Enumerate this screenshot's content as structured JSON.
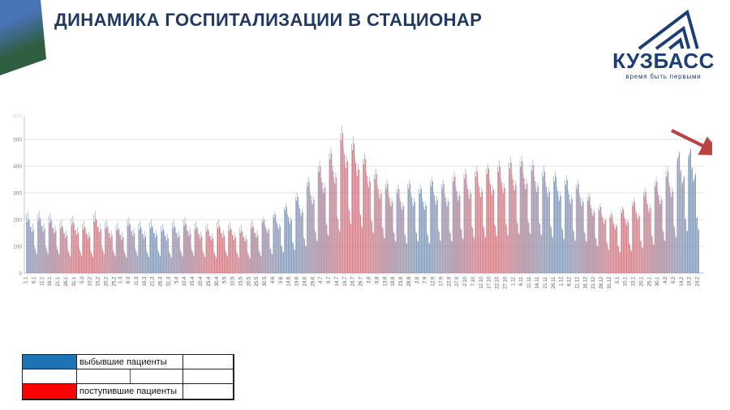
{
  "slide": {
    "title": "ДИНАМИКА ГОСПИТАЛИЗАЦИИ В СТАЦИОНАР"
  },
  "logo": {
    "wordmark": "КУЗБАСС",
    "tagline": "время быть первыми",
    "color": "#1b3e78"
  },
  "legend": {
    "items": [
      {
        "label": "выбывшие пациенты",
        "color": "#1e73b5"
      },
      {
        "label": "поступившие пациенты",
        "color": "#fe0000"
      }
    ]
  },
  "decor": {
    "corner_top_color": "#4a74b8",
    "corner_bottom_color": "#2f5d40"
  },
  "chart_data": {
    "type": "bar",
    "title": "",
    "xlabel": "",
    "ylabel": "",
    "ylim": [
      0,
      600
    ],
    "grid": true,
    "legend_position": "bottom-left-table",
    "y_ticks": [
      0,
      100,
      200,
      300,
      400,
      500,
      600
    ],
    "n_days": 420,
    "x_tick_days": [
      0,
      5,
      10,
      15,
      20,
      25,
      30,
      35,
      40,
      45,
      50,
      55,
      59,
      64,
      69,
      74,
      79,
      84,
      89,
      94,
      99,
      104,
      109,
      114,
      119,
      124,
      129,
      134,
      139,
      144,
      149,
      154,
      159,
      164,
      169,
      174,
      179,
      184,
      189,
      194,
      199,
      204,
      209,
      214,
      219,
      224,
      229,
      234,
      239,
      244,
      249,
      254,
      259,
      264,
      269,
      274,
      279,
      284,
      289,
      294,
      299,
      304,
      309,
      314,
      319,
      324,
      329,
      334,
      339,
      344,
      349,
      354,
      359,
      364,
      369,
      374,
      379,
      384,
      389,
      394,
      399,
      404,
      409,
      414,
      419
    ],
    "x_tick_labels": [
      "1.1",
      "6.1",
      "11.1",
      "16.1",
      "21.1",
      "26.1",
      "31.1",
      "5.2",
      "10.2",
      "15.2",
      "20.2",
      "25.2",
      "1.3",
      "6.3",
      "11.3",
      "16.3",
      "21.3",
      "26.3",
      "31.3",
      "5.4",
      "10.4",
      "15.4",
      "20.4",
      "25.4",
      "30.4",
      "5.5",
      "10.5",
      "15.5",
      "20.5",
      "25.5",
      "30.5",
      "4.6",
      "9.6",
      "14.6",
      "19.6",
      "24.6",
      "29.6",
      "4.7",
      "9.7",
      "14.7",
      "19.7",
      "24.7",
      "29.7",
      "3.8",
      "8.8",
      "13.8",
      "18.8",
      "23.8",
      "28.8",
      "2.9",
      "7.9",
      "12.9",
      "17.9",
      "22.9",
      "27.9",
      "2.10",
      "7.10",
      "12.10",
      "17.10",
      "22.10",
      "27.10",
      "1.11",
      "6.11",
      "11.11",
      "16.11",
      "21.11",
      "26.11",
      "1.12",
      "6.12",
      "11.12",
      "16.12",
      "21.12",
      "26.12",
      "31.12",
      "5.1",
      "10.1",
      "15.1",
      "20.1",
      "25.1",
      "30.1",
      "4.2",
      "9.2",
      "14.2",
      "19.2",
      "24.2"
    ],
    "annotations": [
      {
        "type": "arrow",
        "direction": "down-right",
        "color": "#b94442"
      }
    ],
    "series": [
      {
        "name": "выбывшие пациенты",
        "color": "#9ab5d6",
        "values": [
          219,
          230,
          196,
          173,
          184,
          104,
          81,
          223,
          235,
          200,
          176,
          188,
          106,
          82,
          214,
          225,
          191,
          169,
          180,
          101,
          79,
          190,
          200,
          170,
          150,
          160,
          90,
          70,
          204,
          215,
          183,
          161,
          172,
          97,
          75,
          185,
          195,
          166,
          146,
          156,
          88,
          68,
          219,
          230,
          196,
          173,
          184,
          104,
          81,
          190,
          200,
          170,
          150,
          160,
          90,
          70,
          181,
          190,
          162,
          143,
          152,
          86,
          67,
          200,
          210,
          179,
          158,
          168,
          95,
          74,
          185,
          195,
          166,
          146,
          156,
          88,
          68,
          190,
          200,
          170,
          150,
          160,
          90,
          70,
          176,
          185,
          157,
          139,
          148,
          83,
          65,
          190,
          200,
          170,
          150,
          160,
          90,
          70,
          200,
          210,
          179,
          158,
          168,
          95,
          74,
          185,
          195,
          166,
          146,
          156,
          88,
          68,
          176,
          185,
          157,
          139,
          148,
          83,
          65,
          190,
          200,
          170,
          150,
          160,
          90,
          70,
          181,
          190,
          162,
          143,
          152,
          86,
          67,
          171,
          180,
          153,
          135,
          144,
          81,
          63,
          190,
          200,
          170,
          150,
          160,
          90,
          70,
          200,
          210,
          179,
          158,
          168,
          95,
          74,
          219,
          230,
          196,
          173,
          184,
          104,
          81,
          247,
          260,
          221,
          195,
          208,
          117,
          91,
          285,
          300,
          255,
          225,
          240,
          135,
          105,
          342,
          360,
          306,
          270,
          288,
          162,
          126,
          399,
          420,
          357,
          315,
          336,
          189,
          147,
          447,
          470,
          400,
          353,
          376,
          212,
          165,
          523,
          550,
          468,
          413,
          440,
          248,
          193,
          485,
          510,
          434,
          383,
          408,
          230,
          179,
          428,
          450,
          383,
          338,
          360,
          203,
          158,
          371,
          390,
          332,
          293,
          312,
          176,
          137,
          333,
          350,
          298,
          263,
          280,
          158,
          123,
          314,
          330,
          281,
          248,
          264,
          149,
          116,
          333,
          350,
          298,
          263,
          280,
          158,
          123,
          314,
          330,
          281,
          248,
          264,
          149,
          116,
          342,
          360,
          306,
          270,
          288,
          162,
          126,
          333,
          350,
          298,
          263,
          280,
          158,
          123,
          361,
          380,
          323,
          285,
          304,
          171,
          133,
          371,
          390,
          332,
          293,
          312,
          176,
          137,
          380,
          400,
          340,
          300,
          320,
          180,
          140,
          390,
          410,
          349,
          308,
          328,
          185,
          144,
          399,
          420,
          357,
          315,
          336,
          189,
          147,
          413,
          435,
          370,
          326,
          348,
          196,
          152,
          418,
          440,
          374,
          330,
          352,
          198,
          154,
          404,
          425,
          361,
          319,
          340,
          191,
          149,
          380,
          400,
          340,
          300,
          320,
          180,
          140,
          361,
          380,
          323,
          285,
          304,
          171,
          133,
          347,
          365,
          310,
          274,
          292,
          164,
          128,
          333,
          350,
          298,
          263,
          280,
          158,
          123,
          285,
          300,
          255,
          225,
          240,
          135,
          105,
          247,
          260,
          221,
          195,
          208,
          117,
          91,
          219,
          230,
          196,
          173,
          184,
          104,
          81,
          238,
          250,
          213,
          188,
          200,
          113,
          88,
          266,
          280,
          238,
          210,
          224,
          126,
          98,
          304,
          320,
          272,
          240,
          256,
          144,
          112,
          342,
          360,
          306,
          270,
          288,
          162,
          126,
          380,
          400,
          340,
          300,
          320,
          180,
          140,
          418,
          440,
          374,
          330,
          352,
          198,
          154,
          432,
          455,
          387,
          341,
          364,
          205,
          159
        ]
      },
      {
        "name": "поступившие пациенты",
        "color": "#bb5a63",
        "values": [
          192,
          202,
          172,
          152,
          162,
          91,
          71,
          197,
          207,
          176,
          155,
          166,
          93,
          72,
          188,
          198,
          168,
          149,
          158,
          89,
          69,
          167,
          176,
          150,
          132,
          141,
          79,
          62,
          180,
          189,
          161,
          142,
          151,
          85,
          66,
          163,
          172,
          146,
          129,
          138,
          77,
          60,
          192,
          202,
          172,
          152,
          162,
          91,
          71,
          167,
          176,
          150,
          132,
          141,
          79,
          62,
          159,
          167,
          142,
          125,
          134,
          75,
          58,
          176,
          185,
          157,
          139,
          148,
          83,
          65,
          163,
          172,
          146,
          129,
          138,
          77,
          60,
          167,
          176,
          150,
          132,
          141,
          79,
          62,
          155,
          163,
          139,
          122,
          130,
          73,
          57,
          167,
          176,
          150,
          132,
          141,
          79,
          62,
          176,
          185,
          157,
          139,
          148,
          83,
          65,
          163,
          172,
          146,
          129,
          138,
          77,
          60,
          155,
          163,
          139,
          122,
          130,
          73,
          57,
          167,
          176,
          150,
          132,
          141,
          79,
          62,
          159,
          167,
          142,
          125,
          134,
          75,
          58,
          150,
          158,
          134,
          119,
          126,
          71,
          55,
          167,
          176,
          150,
          132,
          141,
          79,
          62,
          190,
          200,
          170,
          150,
          160,
          90,
          70,
          208,
          219,
          186,
          164,
          175,
          99,
          77,
          235,
          247,
          210,
          185,
          198,
          111,
          86,
          271,
          285,
          242,
          214,
          228,
          128,
          100,
          325,
          342,
          291,
          257,
          274,
          154,
          120,
          379,
          399,
          339,
          299,
          319,
          180,
          140,
          425,
          447,
          380,
          335,
          358,
          201,
          156,
          497,
          523,
          445,
          392,
          418,
          235,
          183,
          461,
          485,
          412,
          364,
          388,
          218,
          170,
          407,
          428,
          364,
          321,
          342,
          193,
          150,
          352,
          371,
          315,
          278,
          297,
          167,
          130,
          316,
          333,
          283,
          250,
          266,
          150,
          117,
          298,
          314,
          267,
          236,
          251,
          141,
          110,
          316,
          333,
          283,
          250,
          266,
          150,
          117,
          298,
          314,
          267,
          236,
          251,
          141,
          110,
          325,
          342,
          291,
          257,
          274,
          154,
          120,
          316,
          333,
          283,
          250,
          266,
          150,
          117,
          343,
          361,
          307,
          271,
          289,
          162,
          126,
          352,
          371,
          315,
          278,
          297,
          167,
          130,
          361,
          380,
          323,
          285,
          304,
          171,
          133,
          371,
          390,
          332,
          293,
          312,
          176,
          137,
          379,
          399,
          339,
          299,
          319,
          180,
          140,
          392,
          413,
          351,
          310,
          330,
          186,
          145,
          397,
          418,
          355,
          314,
          334,
          188,
          146,
          384,
          404,
          343,
          303,
          323,
          182,
          141,
          361,
          380,
          323,
          285,
          304,
          171,
          133,
          343,
          361,
          307,
          271,
          289,
          162,
          126,
          330,
          347,
          295,
          260,
          278,
          156,
          121,
          316,
          333,
          283,
          250,
          266,
          150,
          117,
          271,
          285,
          242,
          214,
          228,
          128,
          100,
          235,
          247,
          210,
          185,
          198,
          111,
          86,
          208,
          219,
          186,
          164,
          175,
          99,
          77,
          226,
          238,
          202,
          179,
          190,
          107,
          83,
          253,
          266,
          226,
          200,
          213,
          120,
          93,
          289,
          304,
          258,
          228,
          243,
          137,
          106,
          325,
          342,
          291,
          257,
          274,
          154,
          120,
          361,
          380,
          323,
          285,
          304,
          171,
          133,
          430,
          453,
          385,
          340,
          362,
          204,
          159,
          442,
          465,
          395,
          349,
          372,
          209,
          163
        ]
      }
    ]
  }
}
